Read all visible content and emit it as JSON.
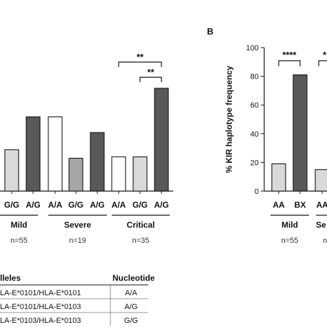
{
  "chart_data": [
    {
      "type": "bar",
      "panel": "",
      "ylim": [
        0,
        100
      ],
      "groups": [
        {
          "label": "Mild",
          "n": "n=55",
          "categories": [
            "G/G",
            "A/G"
          ],
          "values": [
            29,
            52
          ],
          "fills": [
            "#d9d9d9",
            "#595959"
          ]
        },
        {
          "label": "Severe",
          "n": "n=19",
          "categories": [
            "A/A",
            "G/G",
            "A/G"
          ],
          "values": [
            52,
            23,
            41
          ],
          "fills": [
            "#ffffff",
            "#a6a6a6",
            "#595959"
          ]
        },
        {
          "label": "Critical",
          "n": "n=35",
          "categories": [
            "A/A",
            "G/G",
            "A/G"
          ],
          "values": [
            24,
            24,
            72
          ],
          "fills": [
            "#ffffff",
            "#d9d9d9",
            "#595959"
          ]
        }
      ],
      "significance": [
        {
          "group": 2,
          "from": 0,
          "to": 2,
          "label": "**"
        },
        {
          "group": 2,
          "from": 1,
          "to": 2,
          "label": "**"
        }
      ]
    },
    {
      "type": "bar",
      "panel": "B",
      "ylabel": "% KIR haplotype frequency",
      "ylim": [
        0,
        100
      ],
      "yticks": [
        0,
        20,
        40,
        60,
        80,
        100
      ],
      "groups": [
        {
          "label": "Mild",
          "n": "n=55",
          "categories": [
            "AA",
            "BX"
          ],
          "values": [
            19,
            81
          ],
          "fills": [
            "#d9d9d9",
            "#595959"
          ]
        },
        {
          "label": "Se",
          "n": "n",
          "categories": [
            "AA"
          ],
          "values": [
            15
          ],
          "fills": [
            "#d9d9d9"
          ]
        }
      ],
      "significance": [
        {
          "group": 0,
          "from": 0,
          "to": 1,
          "label": "****"
        },
        {
          "group": 1,
          "from": 0,
          "to": 0,
          "label": "*"
        }
      ]
    }
  ],
  "table": {
    "headers": [
      "lleles",
      "Nucleotide"
    ],
    "rows": [
      [
        "LA-E*0101/HLA-E*0101",
        "A/A"
      ],
      [
        "LA-E*0101/HLA-E*0103",
        "A/G"
      ],
      [
        "LA-E*0103/HLA-E*0103",
        "G/G"
      ]
    ]
  }
}
